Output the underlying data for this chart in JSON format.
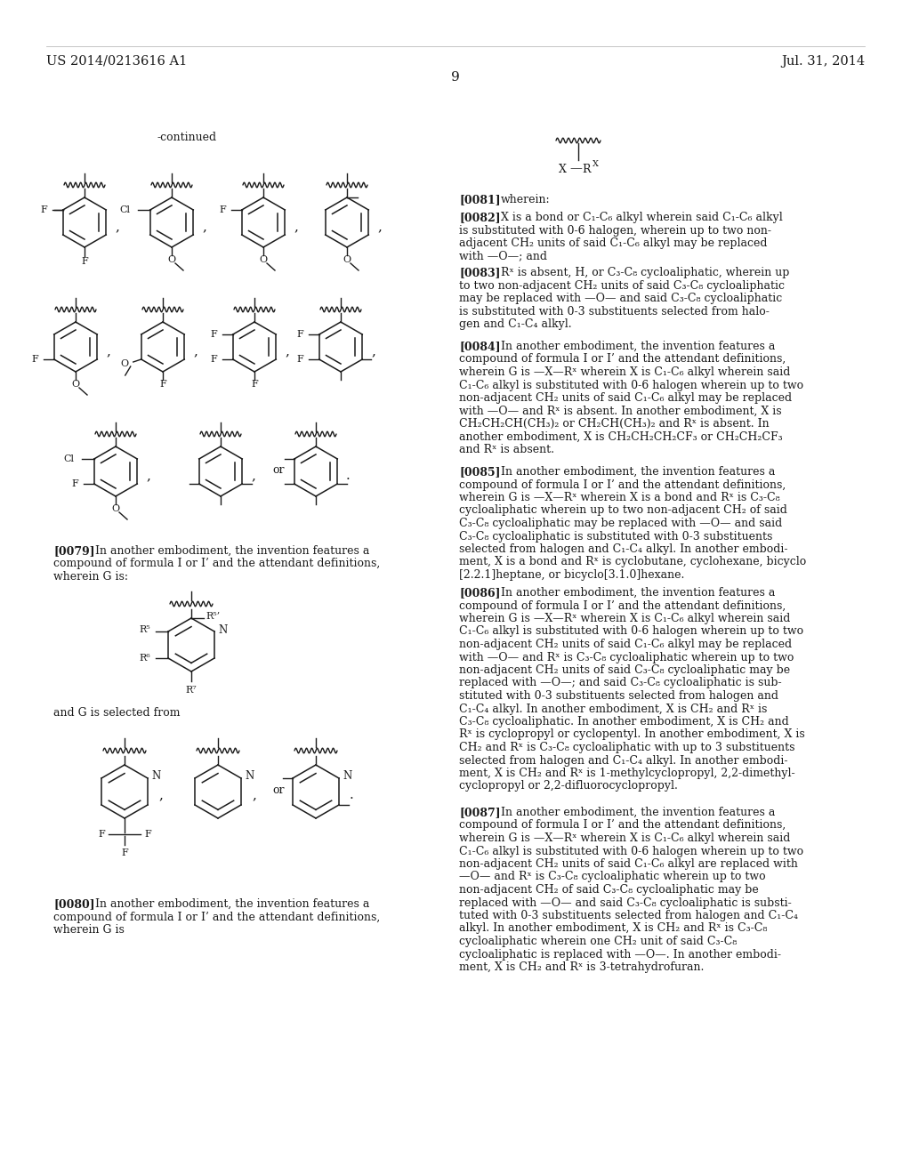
{
  "page_number": "9",
  "patent_number": "US 2014/0213616 A1",
  "patent_date": "Jul. 31, 2014",
  "bg": "#ffffff",
  "tc": "#1a1a1a",
  "lc": "#888888"
}
